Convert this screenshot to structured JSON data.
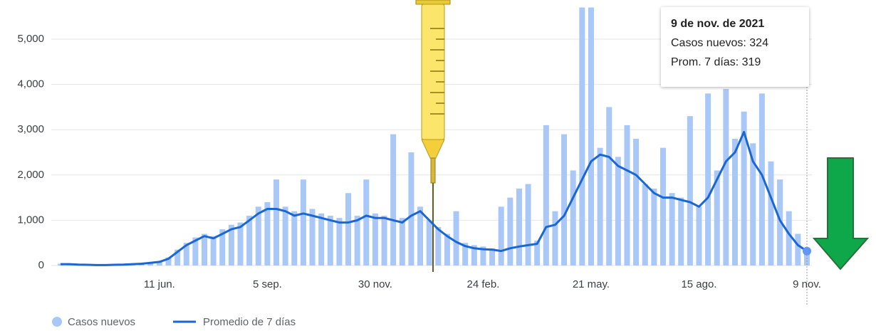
{
  "chart_data": {
    "type": "bar_line",
    "categories": [
      null,
      null,
      null,
      null,
      null,
      null,
      null,
      null,
      null,
      null,
      null,
      "11 jun.",
      null,
      null,
      null,
      null,
      null,
      null,
      null,
      null,
      null,
      null,
      null,
      "5 sep.",
      null,
      null,
      null,
      null,
      null,
      null,
      null,
      null,
      null,
      null,
      null,
      "30 nov.",
      null,
      null,
      null,
      null,
      null,
      null,
      null,
      null,
      null,
      null,
      null,
      "24 feb.",
      null,
      null,
      null,
      null,
      null,
      null,
      null,
      null,
      null,
      null,
      null,
      "21 may.",
      null,
      null,
      null,
      null,
      null,
      null,
      null,
      null,
      null,
      null,
      null,
      "15 ago.",
      null,
      null,
      null,
      null,
      null,
      null,
      null,
      null,
      null,
      null,
      null,
      "9 nov."
    ],
    "series": [
      {
        "name": "Casos nuevos",
        "color": "#aac8f7",
        "values": [
          40,
          35,
          25,
          20,
          15,
          15,
          20,
          25,
          35,
          50,
          70,
          90,
          180,
          350,
          500,
          620,
          700,
          650,
          800,
          900,
          950,
          1100,
          1300,
          1400,
          1900,
          1300,
          1200,
          1900,
          1250,
          1150,
          1100,
          1050,
          1600,
          1100,
          1900,
          1150,
          1100,
          2900,
          1050,
          2500,
          1300,
          1000,
          850,
          700,
          1200,
          500,
          450,
          420,
          380,
          1300,
          1500,
          1700,
          1800,
          550,
          3100,
          1200,
          2900,
          2100,
          5700,
          5700,
          2600,
          3500,
          2400,
          3100,
          2800,
          1800,
          1700,
          2600,
          1600,
          1500,
          3300,
          1300,
          3800,
          2100,
          3900,
          2800,
          3400,
          2700,
          3800,
          2300,
          1900,
          1200,
          700,
          324
        ]
      },
      {
        "name": "Promedio de 7 días",
        "color": "#1a66d2",
        "values": [
          30,
          30,
          20,
          15,
          10,
          10,
          15,
          20,
          30,
          40,
          60,
          80,
          150,
          300,
          450,
          550,
          650,
          600,
          700,
          800,
          850,
          1000,
          1150,
          1250,
          1250,
          1200,
          1100,
          1150,
          1100,
          1050,
          1000,
          950,
          950,
          1000,
          1100,
          1050,
          1050,
          1000,
          950,
          1100,
          1200,
          1000,
          800,
          650,
          520,
          430,
          380,
          360,
          350,
          320,
          380,
          420,
          450,
          480,
          850,
          900,
          1100,
          1500,
          1900,
          2300,
          2450,
          2400,
          2200,
          2100,
          2000,
          1800,
          1600,
          1500,
          1500,
          1450,
          1400,
          1300,
          1500,
          1900,
          2300,
          2500,
          2950,
          2300,
          2000,
          1500,
          1000,
          700,
          450,
          319
        ]
      }
    ],
    "ylim": [
      0,
      5700
    ],
    "yticks": [
      0,
      {
        "value": 1000,
        "label": "1,000"
      },
      {
        "value": 2000,
        "label": "2,000"
      },
      {
        "value": 3000,
        "label": "3,000"
      },
      {
        "value": 4000,
        "label": "4,000"
      },
      {
        "value": 5000,
        "label": "5,000"
      }
    ],
    "grid": true,
    "tooltip": {
      "title": "9 de nov. de 2021",
      "lines": [
        "Casos nuevos: 324",
        "Prom. 7 días: 319"
      ]
    }
  }
}
